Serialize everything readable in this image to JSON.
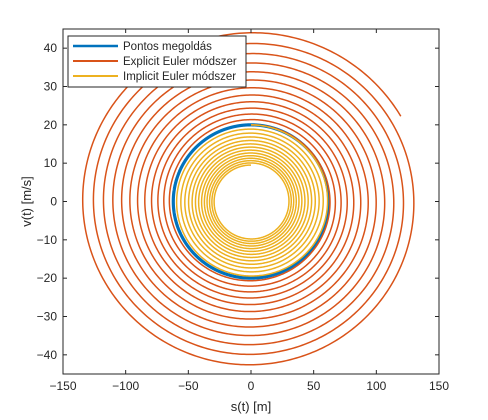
{
  "chart_data": {
    "type": "line",
    "title": "",
    "xlabel": "s(t) [m]",
    "ylabel": "v(t) [m/s]",
    "xlim": [
      -150,
      150
    ],
    "ylim": [
      -45,
      45
    ],
    "xticks": [
      -150,
      -100,
      -50,
      0,
      50,
      100,
      150
    ],
    "yticks": [
      -40,
      -30,
      -20,
      -10,
      0,
      10,
      20,
      30,
      40
    ],
    "grid": false,
    "box": true,
    "legend_position": "top-left",
    "series": [
      {
        "name": "Pontos megoldás",
        "color": "#0072BD",
        "kind": "ellipse",
        "s_amplitude": 62,
        "v_amplitude": 20,
        "start_angle_deg": 90,
        "turns": 1
      },
      {
        "name": "Explicit Euler módszer",
        "color": "#D95319",
        "kind": "spiral-outward",
        "s_amplitude_start": 62,
        "v_amplitude_start": 20,
        "s_amplitude_end": 138,
        "v_amplitude_end": 44.5,
        "start_angle_deg": 90,
        "end_angle_deg": 30,
        "turns": 12
      },
      {
        "name": "Implicit Euler módszer",
        "color": "#EDB120",
        "kind": "spiral-inward",
        "s_amplitude_start": 62,
        "v_amplitude_start": 20,
        "s_amplitude_end": 29,
        "v_amplitude_end": 9.5,
        "start_angle_deg": 90,
        "turns": 13
      }
    ]
  }
}
